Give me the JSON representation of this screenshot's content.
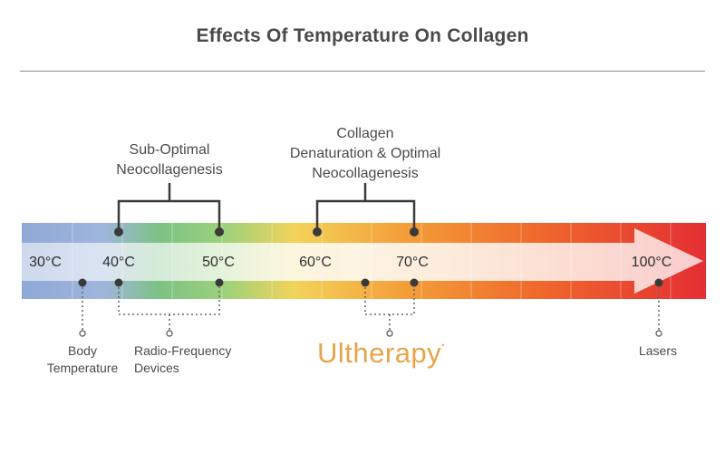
{
  "title": "Effects Of Temperature On Collagen",
  "brackets": {
    "sub_optimal": "Sub-Optimal\nNeocollagenesis",
    "optimal": "Collagen\nDenaturation & Optimal\nNeocollagenesis"
  },
  "temperatures": [
    {
      "value": "30",
      "unit": "°C"
    },
    {
      "value": "40",
      "unit": "°C"
    },
    {
      "value": "50",
      "unit": "°C"
    },
    {
      "value": "60",
      "unit": "°C"
    },
    {
      "value": "70",
      "unit": "°C"
    },
    {
      "value": "100",
      "unit": "°C"
    }
  ],
  "devices": {
    "body_temperature": "Body\nTemperature",
    "radio_frequency": "Radio-Frequency\nDevices",
    "ultherapy": "Ultherapy",
    "lasers": "Lasers"
  },
  "colors": {
    "title": "#4a4a4a",
    "bar_cool": "#8fa9d6",
    "bar_green": "#7cc285",
    "bar_yellow": "#f3d35a",
    "bar_orange": "#ef7d2c",
    "bar_red": "#e42e33",
    "brand": "#e5a54a"
  }
}
